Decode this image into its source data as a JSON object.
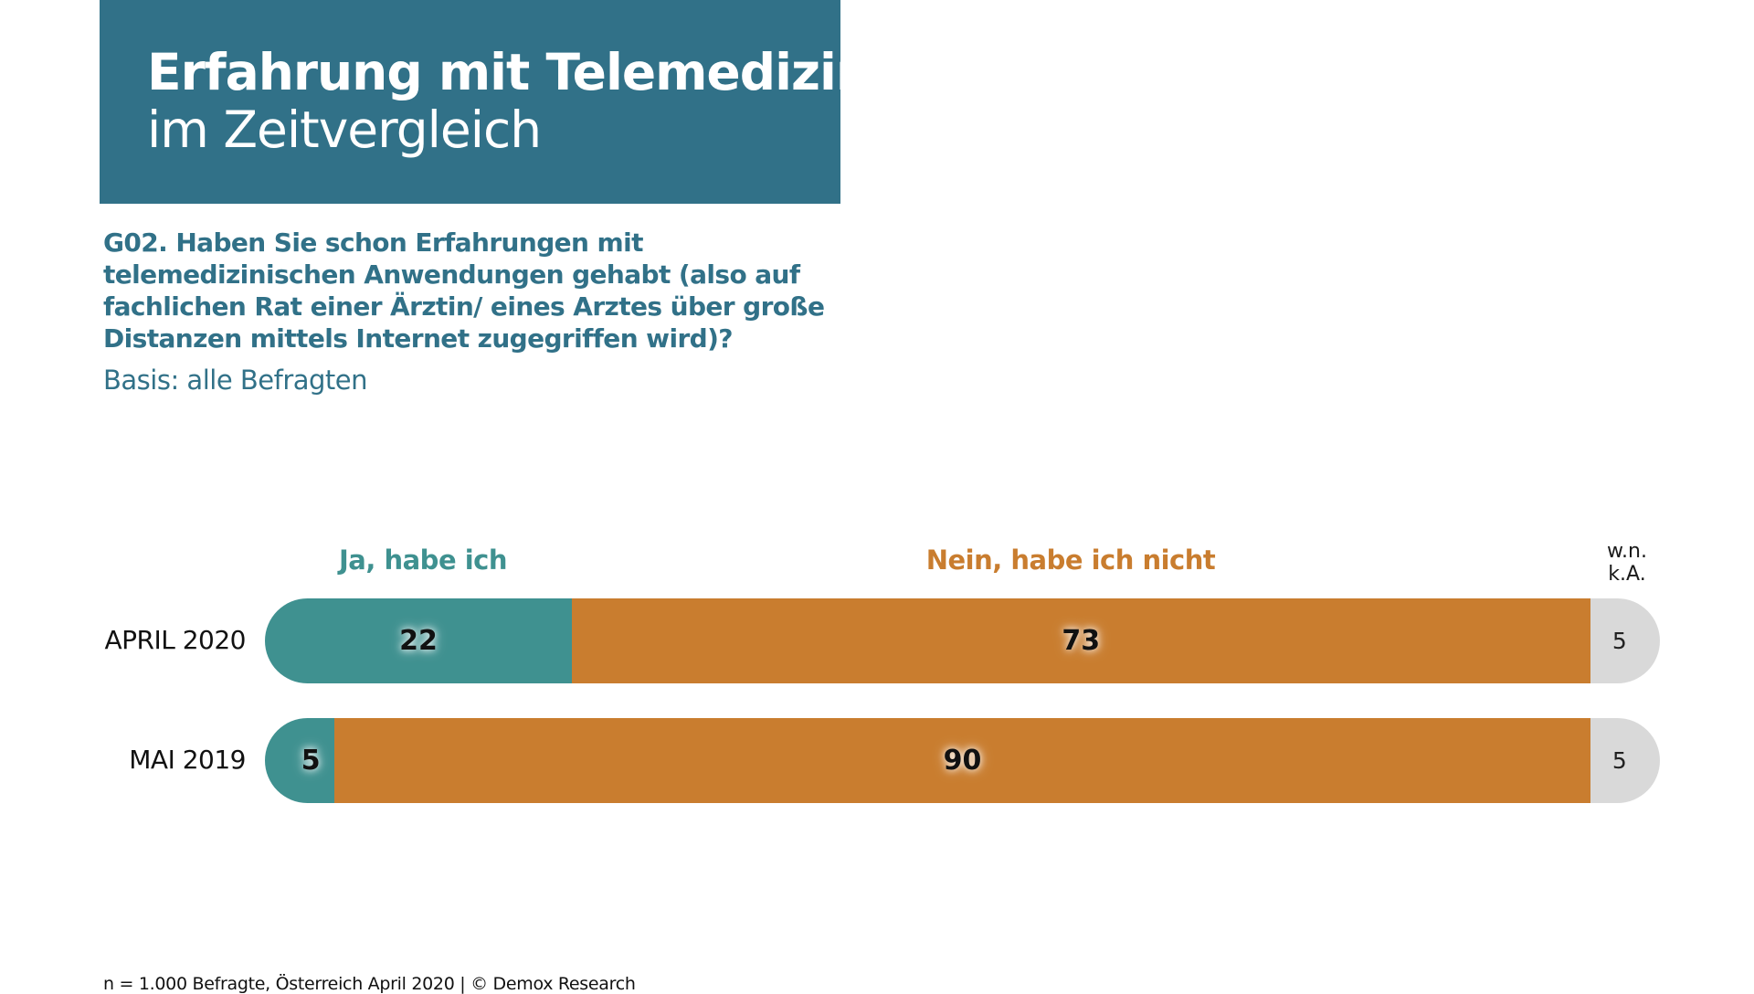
{
  "header": {
    "title_bold": "Erfahrung mit Telemedizin",
    "title_regular": "im Zeitvergleich"
  },
  "question": "G02. Haben Sie schon Erfahrungen mit telemedizinischen Anwendungen gehabt (also auf fachlichen Rat einer Ärztin/ eines Arztes über große Distanzen mittels Internet zugegriffen wird)?",
  "basis": "Basis: alle Befragten",
  "footer": "n = 1.000 Befragte, Österreich April 2020 | © Demox Research",
  "colors": {
    "title_bg": "#317188",
    "ja": "#3f9190",
    "nein": "#c97d2f",
    "wn": "#d9d9d9"
  },
  "chart_data": {
    "type": "bar",
    "orientation": "horizontal",
    "stacked": true,
    "unit": "%",
    "categories": [
      "APRIL 2020",
      "MAI 2019"
    ],
    "series": [
      {
        "name": "Ja, habe ich",
        "color": "#3f9190",
        "values": [
          22,
          5
        ]
      },
      {
        "name": "Nein, habe ich nicht",
        "color": "#c97d2f",
        "values": [
          73,
          90
        ]
      },
      {
        "name": "w.n. k.A.",
        "color": "#d9d9d9",
        "values": [
          5,
          5
        ]
      }
    ],
    "legend": {
      "ja": "Ja, habe ich",
      "nein": "Nein, habe ich nicht",
      "wn_line1": "w.n.",
      "wn_line2": "k.A."
    },
    "xlim": [
      0,
      100
    ]
  }
}
